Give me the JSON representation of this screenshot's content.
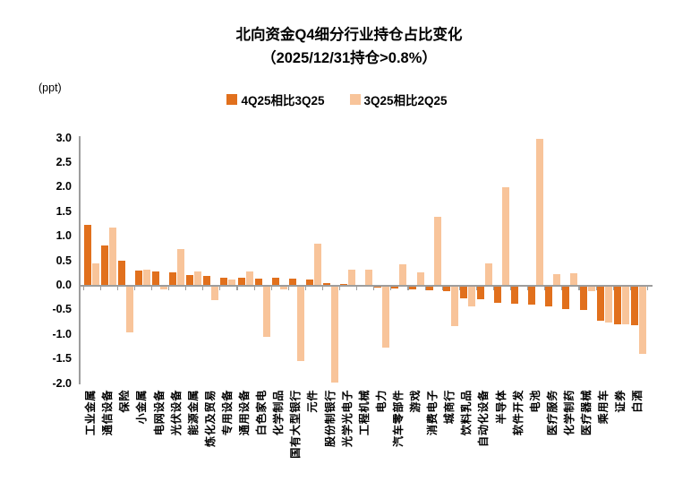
{
  "title": {
    "line1": "北向资金Q4细分行业持仓占比变化",
    "line2": "（2025/12/31持仓>0.8%）"
  },
  "y_axis_unit": "(ppt)",
  "legend": [
    {
      "label": "4Q25相比3Q25",
      "color": "#E1701D"
    },
    {
      "label": "3Q25相比2Q25",
      "color": "#F8C49A"
    }
  ],
  "colors": {
    "series_dark": "#E1701D",
    "series_light": "#F8C49A",
    "axis": "#9d9d9d",
    "text": "#000000",
    "background": "#ffffff"
  },
  "chart_data": {
    "type": "bar",
    "title": "北向资金Q4细分行业持仓占比变化（2025/12/31持仓>0.8%）",
    "xlabel": "",
    "ylabel": "(ppt)",
    "ylim": [
      -2.0,
      3.0
    ],
    "ytick_step": 0.5,
    "grid": false,
    "legend_position": "top-center",
    "categories": [
      "工业金属",
      "通信设备",
      "保险",
      "小金属",
      "电网设备",
      "光伏设备",
      "能源金属",
      "炼化及贸易",
      "专用设备",
      "通用设备",
      "白色家电",
      "化学制品",
      "国有大型银行",
      "元件",
      "股份制银行",
      "光学光电子",
      "工程机械",
      "电力",
      "汽车零部件",
      "游戏",
      "消费电子",
      "城商行",
      "饮料乳品",
      "自动化设备",
      "半导体",
      "软件开发",
      "电池",
      "医疗服务",
      "化学制药",
      "医疗器械",
      "乘用车",
      "证券",
      "白酒"
    ],
    "series": [
      {
        "name": "4Q25相比3Q25",
        "color": "#E1701D",
        "values": [
          1.25,
          0.82,
          0.52,
          0.31,
          0.3,
          0.27,
          0.22,
          0.2,
          0.17,
          0.16,
          0.15,
          0.16,
          0.15,
          0.13,
          0.06,
          0.03,
          0.02,
          -0.03,
          -0.05,
          -0.08,
          -0.1,
          -0.11,
          -0.26,
          -0.28,
          -0.35,
          -0.36,
          -0.39,
          -0.42,
          -0.48,
          -0.5,
          -0.72,
          -0.78,
          -0.81
        ]
      },
      {
        "name": "3Q25相比2Q25",
        "color": "#F8C49A",
        "values": [
          0.45,
          1.18,
          -0.95,
          0.32,
          -0.08,
          0.75,
          0.29,
          -0.29,
          0.13,
          0.3,
          -1.04,
          -0.07,
          -1.53,
          0.85,
          -1.97,
          0.33,
          0.32,
          -1.25,
          0.44,
          0.27,
          1.4,
          -0.82,
          -0.42,
          0.45,
          2.0,
          0.0,
          3.0,
          0.24,
          0.26,
          -0.11,
          -0.75,
          -0.79,
          -1.39
        ]
      }
    ]
  }
}
